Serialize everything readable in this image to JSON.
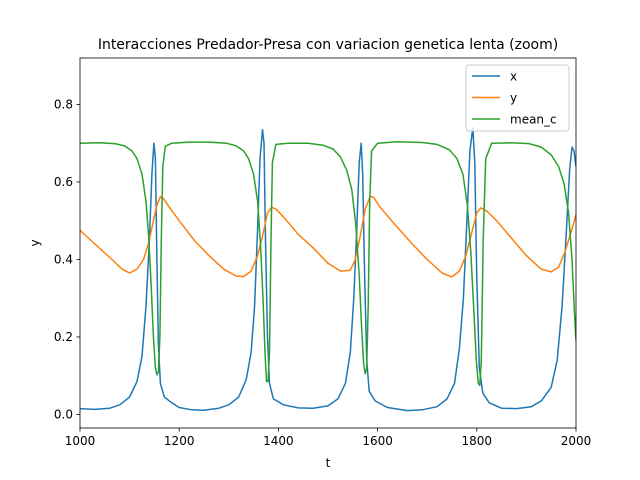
{
  "chart_data": {
    "type": "line",
    "title": "Interacciones Predador-Presa con variacion genetica lenta (zoom)",
    "xlabel": "t",
    "ylabel": "y",
    "xlim": [
      1000,
      2000
    ],
    "ylim": [
      -0.035,
      0.92
    ],
    "xticks": [
      "1000",
      "1200",
      "1400",
      "1600",
      "1800",
      "2000"
    ],
    "yticks": [
      "0.0",
      "0.2",
      "0.4",
      "0.6",
      "0.8"
    ],
    "grid": false,
    "legend_position": "upper right",
    "series": [
      {
        "name": "x",
        "color": "#1f77b4",
        "points": [
          [
            1000,
            0.015
          ],
          [
            1030,
            0.013
          ],
          [
            1060,
            0.016
          ],
          [
            1080,
            0.025
          ],
          [
            1100,
            0.045
          ],
          [
            1115,
            0.085
          ],
          [
            1125,
            0.15
          ],
          [
            1133,
            0.28
          ],
          [
            1140,
            0.45
          ],
          [
            1145,
            0.62
          ],
          [
            1149,
            0.7
          ],
          [
            1152,
            0.66
          ],
          [
            1155,
            0.4
          ],
          [
            1158,
            0.18
          ],
          [
            1162,
            0.08
          ],
          [
            1170,
            0.045
          ],
          [
            1185,
            0.03
          ],
          [
            1200,
            0.018
          ],
          [
            1225,
            0.012
          ],
          [
            1250,
            0.011
          ],
          [
            1280,
            0.016
          ],
          [
            1300,
            0.025
          ],
          [
            1320,
            0.045
          ],
          [
            1335,
            0.09
          ],
          [
            1345,
            0.16
          ],
          [
            1352,
            0.28
          ],
          [
            1358,
            0.48
          ],
          [
            1363,
            0.66
          ],
          [
            1368,
            0.735
          ],
          [
            1371,
            0.7
          ],
          [
            1374,
            0.45
          ],
          [
            1378,
            0.2
          ],
          [
            1382,
            0.08
          ],
          [
            1390,
            0.04
          ],
          [
            1410,
            0.025
          ],
          [
            1440,
            0.017
          ],
          [
            1470,
            0.016
          ],
          [
            1500,
            0.022
          ],
          [
            1520,
            0.04
          ],
          [
            1535,
            0.08
          ],
          [
            1545,
            0.16
          ],
          [
            1552,
            0.3
          ],
          [
            1558,
            0.48
          ],
          [
            1563,
            0.65
          ],
          [
            1567,
            0.7
          ],
          [
            1570,
            0.62
          ],
          [
            1574,
            0.35
          ],
          [
            1578,
            0.14
          ],
          [
            1583,
            0.06
          ],
          [
            1595,
            0.035
          ],
          [
            1620,
            0.018
          ],
          [
            1660,
            0.01
          ],
          [
            1690,
            0.012
          ],
          [
            1720,
            0.02
          ],
          [
            1740,
            0.04
          ],
          [
            1755,
            0.08
          ],
          [
            1765,
            0.17
          ],
          [
            1773,
            0.3
          ],
          [
            1780,
            0.5
          ],
          [
            1786,
            0.68
          ],
          [
            1792,
            0.74
          ],
          [
            1796,
            0.65
          ],
          [
            1800,
            0.35
          ],
          [
            1805,
            0.12
          ],
          [
            1812,
            0.055
          ],
          [
            1825,
            0.03
          ],
          [
            1850,
            0.016
          ],
          [
            1880,
            0.015
          ],
          [
            1910,
            0.02
          ],
          [
            1930,
            0.035
          ],
          [
            1950,
            0.07
          ],
          [
            1962,
            0.14
          ],
          [
            1972,
            0.28
          ],
          [
            1980,
            0.46
          ],
          [
            1987,
            0.63
          ],
          [
            1992,
            0.69
          ],
          [
            1996,
            0.68
          ],
          [
            1998,
            0.66
          ],
          [
            2000,
            0.64
          ]
        ]
      },
      {
        "name": "y",
        "color": "#ff7f0e",
        "points": [
          [
            1000,
            0.475
          ],
          [
            1030,
            0.44
          ],
          [
            1060,
            0.405
          ],
          [
            1085,
            0.375
          ],
          [
            1100,
            0.365
          ],
          [
            1115,
            0.375
          ],
          [
            1128,
            0.4
          ],
          [
            1138,
            0.44
          ],
          [
            1148,
            0.5
          ],
          [
            1155,
            0.54
          ],
          [
            1162,
            0.562
          ],
          [
            1168,
            0.558
          ],
          [
            1180,
            0.535
          ],
          [
            1200,
            0.5
          ],
          [
            1230,
            0.45
          ],
          [
            1260,
            0.41
          ],
          [
            1290,
            0.375
          ],
          [
            1315,
            0.357
          ],
          [
            1330,
            0.356
          ],
          [
            1345,
            0.37
          ],
          [
            1358,
            0.41
          ],
          [
            1368,
            0.46
          ],
          [
            1378,
            0.52
          ],
          [
            1386,
            0.535
          ],
          [
            1395,
            0.53
          ],
          [
            1410,
            0.51
          ],
          [
            1440,
            0.465
          ],
          [
            1470,
            0.43
          ],
          [
            1500,
            0.39
          ],
          [
            1525,
            0.37
          ],
          [
            1545,
            0.372
          ],
          [
            1555,
            0.4
          ],
          [
            1565,
            0.46
          ],
          [
            1575,
            0.53
          ],
          [
            1585,
            0.563
          ],
          [
            1592,
            0.56
          ],
          [
            1605,
            0.535
          ],
          [
            1635,
            0.49
          ],
          [
            1670,
            0.44
          ],
          [
            1700,
            0.4
          ],
          [
            1730,
            0.365
          ],
          [
            1750,
            0.355
          ],
          [
            1765,
            0.37
          ],
          [
            1778,
            0.41
          ],
          [
            1790,
            0.47
          ],
          [
            1800,
            0.52
          ],
          [
            1808,
            0.533
          ],
          [
            1820,
            0.525
          ],
          [
            1840,
            0.5
          ],
          [
            1870,
            0.455
          ],
          [
            1900,
            0.41
          ],
          [
            1930,
            0.375
          ],
          [
            1950,
            0.368
          ],
          [
            1965,
            0.38
          ],
          [
            1978,
            0.42
          ],
          [
            1990,
            0.47
          ],
          [
            2000,
            0.515
          ]
        ]
      },
      {
        "name": "mean_c",
        "color": "#2ca02c",
        "points": [
          [
            1000,
            0.7
          ],
          [
            1040,
            0.701
          ],
          [
            1070,
            0.699
          ],
          [
            1090,
            0.693
          ],
          [
            1105,
            0.68
          ],
          [
            1115,
            0.66
          ],
          [
            1125,
            0.62
          ],
          [
            1133,
            0.55
          ],
          [
            1139,
            0.45
          ],
          [
            1144,
            0.32
          ],
          [
            1148,
            0.2
          ],
          [
            1152,
            0.12
          ],
          [
            1155,
            0.102
          ],
          [
            1158,
            0.11
          ],
          [
            1161,
            0.2
          ],
          [
            1164,
            0.45
          ],
          [
            1167,
            0.64
          ],
          [
            1172,
            0.692
          ],
          [
            1185,
            0.7
          ],
          [
            1220,
            0.703
          ],
          [
            1260,
            0.703
          ],
          [
            1295,
            0.7
          ],
          [
            1315,
            0.693
          ],
          [
            1330,
            0.68
          ],
          [
            1340,
            0.66
          ],
          [
            1350,
            0.62
          ],
          [
            1358,
            0.55
          ],
          [
            1364,
            0.44
          ],
          [
            1369,
            0.3
          ],
          [
            1373,
            0.16
          ],
          [
            1376,
            0.085
          ],
          [
            1379,
            0.085
          ],
          [
            1382,
            0.16
          ],
          [
            1385,
            0.45
          ],
          [
            1388,
            0.65
          ],
          [
            1395,
            0.697
          ],
          [
            1420,
            0.7
          ],
          [
            1460,
            0.7
          ],
          [
            1490,
            0.695
          ],
          [
            1510,
            0.685
          ],
          [
            1525,
            0.665
          ],
          [
            1538,
            0.63
          ],
          [
            1548,
            0.58
          ],
          [
            1556,
            0.49
          ],
          [
            1563,
            0.36
          ],
          [
            1568,
            0.22
          ],
          [
            1572,
            0.13
          ],
          [
            1575,
            0.105
          ],
          [
            1578,
            0.12
          ],
          [
            1581,
            0.28
          ],
          [
            1584,
            0.55
          ],
          [
            1588,
            0.68
          ],
          [
            1600,
            0.7
          ],
          [
            1640,
            0.704
          ],
          [
            1690,
            0.702
          ],
          [
            1720,
            0.697
          ],
          [
            1745,
            0.683
          ],
          [
            1760,
            0.66
          ],
          [
            1772,
            0.62
          ],
          [
            1781,
            0.54
          ],
          [
            1788,
            0.42
          ],
          [
            1794,
            0.27
          ],
          [
            1799,
            0.14
          ],
          [
            1803,
            0.08
          ],
          [
            1806,
            0.075
          ],
          [
            1809,
            0.14
          ],
          [
            1813,
            0.45
          ],
          [
            1818,
            0.66
          ],
          [
            1830,
            0.7
          ],
          [
            1870,
            0.701
          ],
          [
            1905,
            0.699
          ],
          [
            1930,
            0.69
          ],
          [
            1950,
            0.67
          ],
          [
            1965,
            0.64
          ],
          [
            1976,
            0.595
          ],
          [
            1985,
            0.52
          ],
          [
            1992,
            0.4
          ],
          [
            1997,
            0.26
          ],
          [
            2000,
            0.19
          ]
        ]
      }
    ]
  }
}
